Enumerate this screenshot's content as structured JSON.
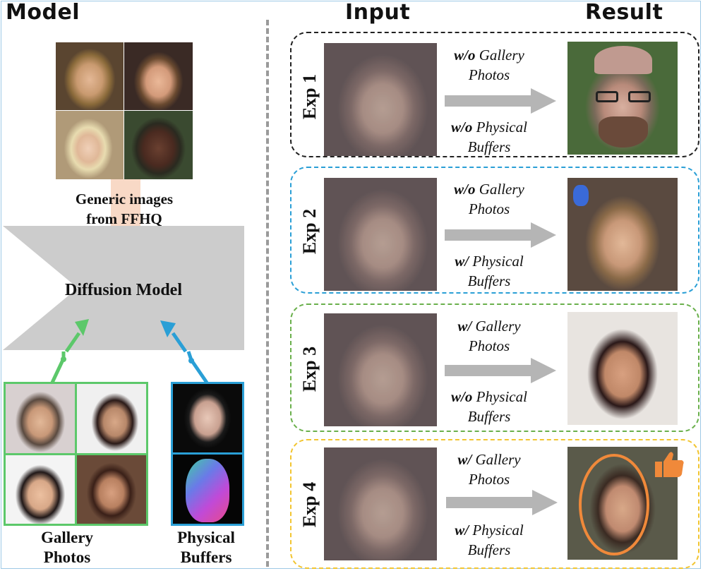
{
  "headers": {
    "model": "Model",
    "input": "Input",
    "result": "Result"
  },
  "model_panel": {
    "generic_caption_line1": "Generic images",
    "generic_caption_line2": "from FFHQ",
    "diffusion_label": "Diffusion Model",
    "gallery_caption_line1": "Gallery",
    "gallery_caption_line2": "Photos",
    "buffers_caption_line1": "Physical",
    "buffers_caption_line2": "Buffers"
  },
  "experiments": [
    {
      "label": "Exp 1",
      "gallery_prefix": "w/o",
      "gallery_text": "Gallery",
      "gallery_line2": "Photos",
      "buffer_prefix": "w/o",
      "buffer_text": "Physical",
      "buffer_line2": "Buffers",
      "border_color": "#222222"
    },
    {
      "label": "Exp 2",
      "gallery_prefix": "w/o",
      "gallery_text": "Gallery",
      "gallery_line2": "Photos",
      "buffer_prefix": "w/",
      "buffer_text": "Physical",
      "buffer_line2": "Buffers",
      "border_color": "#2a9fd6"
    },
    {
      "label": "Exp 3",
      "gallery_prefix": "w/",
      "gallery_text": "Gallery",
      "gallery_line2": "Photos",
      "buffer_prefix": "w/o",
      "buffer_text": "Physical",
      "buffer_line2": "Buffers",
      "border_color": "#6ab04c"
    },
    {
      "label": "Exp 4",
      "gallery_prefix": "w/",
      "gallery_text": "Gallery",
      "gallery_line2": "Photos",
      "buffer_prefix": "w/",
      "buffer_text": "Physical",
      "buffer_line2": "Buffers",
      "border_color": "#f2c531"
    }
  ],
  "colors": {
    "gallery_green": "#5cc86a",
    "buffer_blue": "#2a9fd6",
    "ffhq_arrow": "#f8d9c6",
    "arrow_gray": "#b5b5b5",
    "highlight_orange": "#f0893a"
  },
  "icons": {
    "thumbs_up": "thumbs-up-icon"
  }
}
